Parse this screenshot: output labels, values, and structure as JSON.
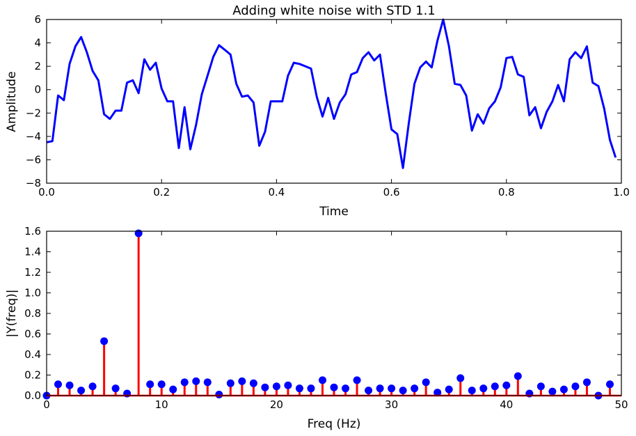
{
  "colors": {
    "signal_line": "#0000ff",
    "stem_line": "#ff0000",
    "stem_marker": "#0000ff",
    "axes": "#000000"
  },
  "chart_data": [
    {
      "type": "line",
      "title": "Adding white noise with STD 1.1",
      "xlabel": "Time",
      "ylabel": "Amplitude",
      "xlim": [
        0.0,
        1.0
      ],
      "ylim": [
        -8,
        6
      ],
      "xticks": [
        "0.0",
        "0.2",
        "0.4",
        "0.6",
        "0.8",
        "1.0"
      ],
      "yticks": [
        "−8",
        "−6",
        "−4",
        "−2",
        "0",
        "2",
        "4",
        "6"
      ],
      "grid": false,
      "series": [
        {
          "x": [
            0.0,
            0.01,
            0.02,
            0.03,
            0.04,
            0.05,
            0.06,
            0.07,
            0.08,
            0.09,
            0.1,
            0.11,
            0.12,
            0.13,
            0.14,
            0.15,
            0.16,
            0.17,
            0.18,
            0.19,
            0.2,
            0.21,
            0.22,
            0.23,
            0.24,
            0.25,
            0.26,
            0.27,
            0.28,
            0.29,
            0.3,
            0.31,
            0.32,
            0.33,
            0.34,
            0.35,
            0.36,
            0.37,
            0.38,
            0.39,
            0.4,
            0.41,
            0.42,
            0.43,
            0.44,
            0.45,
            0.46,
            0.47,
            0.48,
            0.49,
            0.5,
            0.51,
            0.52,
            0.53,
            0.54,
            0.55,
            0.56,
            0.57,
            0.58,
            0.59,
            0.6,
            0.61,
            0.62,
            0.63,
            0.64,
            0.65,
            0.66,
            0.67,
            0.68,
            0.69,
            0.7,
            0.71,
            0.72,
            0.73,
            0.74,
            0.75,
            0.76,
            0.77,
            0.78,
            0.79,
            0.8,
            0.81,
            0.82,
            0.83,
            0.84,
            0.85,
            0.86,
            0.87,
            0.88,
            0.89,
            0.9,
            0.91,
            0.92,
            0.93,
            0.94,
            0.95,
            0.96,
            0.97,
            0.98,
            0.99
          ],
          "values": [
            -4.5,
            -4.4,
            -0.5,
            -0.9,
            2.2,
            3.7,
            4.5,
            3.2,
            1.6,
            0.8,
            -2.1,
            -2.5,
            -1.8,
            -1.8,
            0.6,
            0.8,
            -0.3,
            2.6,
            1.7,
            2.3,
            0.1,
            -1.0,
            -1.0,
            -5.0,
            -1.5,
            -5.1,
            -3.0,
            -0.4,
            1.2,
            2.8,
            3.8,
            3.4,
            3.0,
            0.5,
            -0.6,
            -0.5,
            -1.1,
            -4.8,
            -3.6,
            -1.0,
            -1.0,
            -1.0,
            1.2,
            2.3,
            2.2,
            2.0,
            1.8,
            -0.6,
            -2.3,
            -0.7,
            -2.5,
            -1.1,
            -0.4,
            1.3,
            1.5,
            2.7,
            3.2,
            2.5,
            3.0,
            -0.3,
            -3.4,
            -3.8,
            -6.7,
            -2.9,
            0.5,
            1.9,
            2.4,
            1.9,
            4.2,
            6.0,
            3.7,
            0.5,
            0.4,
            -0.5,
            -3.5,
            -2.1,
            -2.9,
            -1.6,
            -1.0,
            0.2,
            2.7,
            2.8,
            1.3,
            1.1,
            -2.2,
            -1.5,
            -3.3,
            -1.9,
            -1.0,
            0.4,
            -1.0,
            2.6,
            3.2,
            2.7,
            3.7,
            0.6,
            0.3,
            -1.6,
            -4.3,
            -5.8
          ]
        }
      ]
    },
    {
      "type": "stem",
      "title": "",
      "xlabel": "Freq (Hz)",
      "ylabel": "|Y(freq)|",
      "xlim": [
        0,
        50
      ],
      "ylim": [
        0.0,
        1.6
      ],
      "xticks": [
        "0",
        "10",
        "20",
        "30",
        "40",
        "50"
      ],
      "yticks": [
        "0.0",
        "0.2",
        "0.4",
        "0.6",
        "0.8",
        "1.0",
        "1.2",
        "1.4",
        "1.6"
      ],
      "grid": false,
      "series": [
        {
          "x": [
            0,
            1,
            2,
            3,
            4,
            5,
            6,
            7,
            8,
            9,
            10,
            11,
            12,
            13,
            14,
            15,
            16,
            17,
            18,
            19,
            20,
            21,
            22,
            23,
            24,
            25,
            26,
            27,
            28,
            29,
            30,
            31,
            32,
            33,
            34,
            35,
            36,
            37,
            38,
            39,
            40,
            41,
            42,
            43,
            44,
            45,
            46,
            47,
            48,
            49
          ],
          "values": [
            0.0,
            0.11,
            0.1,
            0.05,
            0.09,
            0.53,
            0.07,
            0.02,
            1.58,
            0.11,
            0.11,
            0.06,
            0.13,
            0.14,
            0.13,
            0.01,
            0.12,
            0.14,
            0.12,
            0.08,
            0.09,
            0.1,
            0.07,
            0.07,
            0.15,
            0.08,
            0.07,
            0.15,
            0.05,
            0.07,
            0.07,
            0.05,
            0.07,
            0.13,
            0.03,
            0.06,
            0.17,
            0.05,
            0.07,
            0.09,
            0.1,
            0.19,
            0.02,
            0.09,
            0.04,
            0.06,
            0.09,
            0.13,
            0.0,
            0.11
          ]
        }
      ]
    }
  ]
}
